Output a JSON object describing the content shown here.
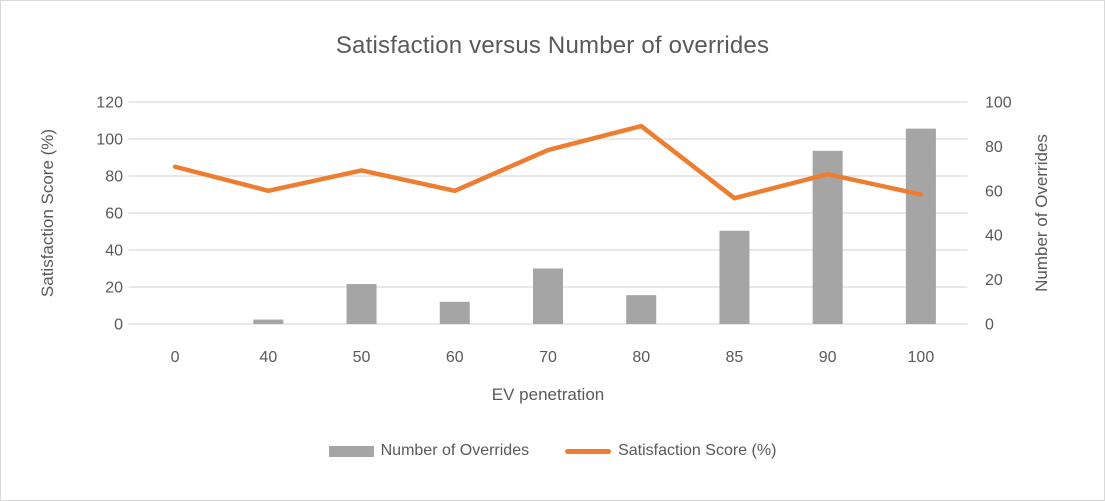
{
  "chart_data": {
    "type": "combo",
    "title": "Satisfaction versus Number of overrides",
    "categories": [
      "0",
      "40",
      "50",
      "60",
      "70",
      "80",
      "85",
      "90",
      "100"
    ],
    "x_axis": {
      "title": "EV penetration"
    },
    "y_axis_left": {
      "title": "Satisfaction Score (%)",
      "min": 0,
      "max": 120,
      "ticks": [
        0,
        20,
        40,
        60,
        80,
        100,
        120
      ]
    },
    "y_axis_right": {
      "title": "Number of Overrides",
      "min": 0,
      "max": 100,
      "ticks": [
        0,
        20,
        40,
        60,
        80,
        100
      ]
    },
    "series": [
      {
        "name": "Number of Overrides",
        "type": "bar",
        "axis": "right",
        "color": "#A5A5A5",
        "values": [
          0,
          2,
          18,
          10,
          25,
          13,
          42,
          78,
          88
        ]
      },
      {
        "name": "Satisfaction Score (%)",
        "type": "line",
        "axis": "left",
        "color": "#ED7D31",
        "values": [
          85,
          72,
          83,
          72,
          94,
          107,
          68,
          81,
          70
        ]
      }
    ],
    "legend": {
      "position": "bottom"
    },
    "grid": true,
    "colors": {
      "grid": "#D9D9D9",
      "text": "#595959",
      "bar": "#A5A5A5",
      "line": "#ED7D31",
      "frame_border": "#D9D9D9"
    }
  }
}
